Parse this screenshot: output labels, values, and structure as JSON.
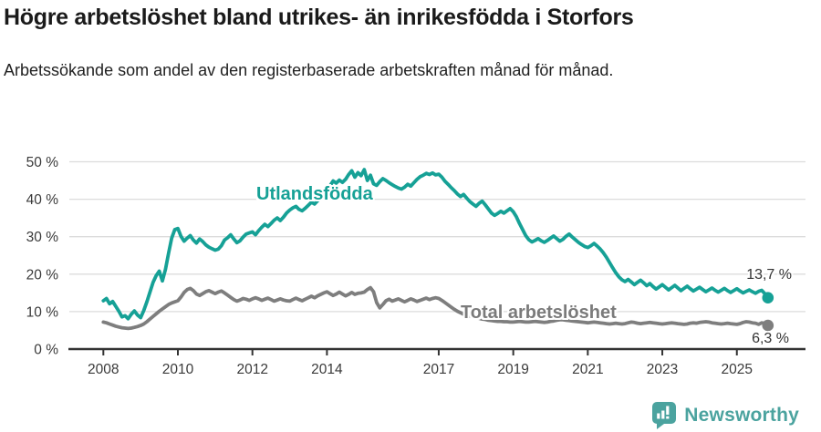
{
  "header": {
    "title": "Högre arbetslöshet bland utrikes- än inrikesfödda i Storfors",
    "subtitle": "Arbetssökande som andel av den registerbaserade arbetskraften månad för månad."
  },
  "chart_data": {
    "type": "line",
    "unit": "%",
    "x_start_year": 2008,
    "x_step_months": 1,
    "x_end_label_period": "late 2025",
    "xlim": [
      2007.05,
      2026.9
    ],
    "ylim": [
      0,
      52
    ],
    "grid": true,
    "legend_position": "inline-labels",
    "y_ticks": [
      {
        "value": 0,
        "label": "0 %"
      },
      {
        "value": 10,
        "label": "10 %"
      },
      {
        "value": 20,
        "label": "20 %"
      },
      {
        "value": 30,
        "label": "30 %"
      },
      {
        "value": 40,
        "label": "40 %"
      },
      {
        "value": 50,
        "label": "50 %"
      }
    ],
    "x_ticks": [
      {
        "value": 2008,
        "label": "2008"
      },
      {
        "value": 2010,
        "label": "2010"
      },
      {
        "value": 2012,
        "label": "2012"
      },
      {
        "value": 2014,
        "label": "2014"
      },
      {
        "value": 2017,
        "label": "2017"
      },
      {
        "value": 2019,
        "label": "2019"
      },
      {
        "value": 2021,
        "label": "2021"
      },
      {
        "value": 2023,
        "label": "2023"
      },
      {
        "value": 2025,
        "label": "2025"
      }
    ],
    "series": [
      {
        "name": "Utlandsfödda",
        "color": "#16A196",
        "end_value": 13.7,
        "end_label": "13,7 %",
        "values": [
          12.9,
          13.5,
          12.1,
          12.7,
          11.4,
          10.1,
          8.6,
          8.9,
          8.1,
          9.3,
          10.2,
          9.1,
          8.4,
          10.3,
          12.6,
          15.2,
          17.8,
          19.6,
          20.8,
          18.2,
          21.3,
          25.6,
          29.6,
          31.9,
          32.2,
          30.1,
          28.8,
          29.6,
          30.3,
          29.1,
          28.3,
          29.4,
          28.7,
          27.8,
          27.2,
          26.8,
          26.4,
          26.7,
          27.6,
          29.1,
          29.7,
          30.5,
          29.4,
          28.4,
          28.9,
          29.9,
          30.7,
          31.0,
          31.3,
          30.5,
          31.6,
          32.5,
          33.3,
          32.7,
          33.5,
          34.4,
          35.0,
          34.3,
          35.2,
          36.3,
          37.1,
          37.7,
          38.1,
          37.3,
          36.9,
          37.6,
          38.4,
          39.2,
          38.7,
          39.6,
          40.3,
          41.2,
          42.2,
          43.6,
          44.9,
          44.3,
          45.1,
          44.5,
          45.3,
          46.6,
          47.6,
          45.9,
          47.1,
          46.3,
          47.9,
          45.0,
          46.4,
          44.1,
          43.7,
          44.7,
          45.5,
          45.0,
          44.4,
          43.9,
          43.4,
          43.0,
          42.7,
          43.2,
          44.0,
          43.5,
          44.4,
          45.3,
          46.0,
          46.4,
          46.9,
          46.6,
          47.0,
          46.5,
          46.7,
          45.9,
          44.8,
          44.0,
          43.1,
          42.3,
          41.4,
          40.7,
          41.3,
          40.3,
          39.4,
          38.7,
          38.1,
          38.9,
          39.5,
          38.5,
          37.4,
          36.3,
          35.7,
          36.2,
          36.8,
          36.3,
          36.9,
          37.5,
          36.7,
          35.3,
          33.5,
          31.9,
          30.3,
          29.2,
          28.6,
          29.0,
          29.5,
          28.9,
          28.5,
          29.0,
          29.6,
          30.2,
          29.5,
          28.8,
          29.3,
          30.1,
          30.7,
          29.9,
          29.2,
          28.5,
          27.9,
          27.4,
          27.1,
          27.6,
          28.2,
          27.5,
          26.7,
          25.7,
          24.5,
          23.1,
          21.7,
          20.4,
          19.3,
          18.5,
          18.0,
          18.6,
          17.9,
          17.2,
          17.8,
          18.4,
          17.7,
          16.9,
          17.5,
          16.7,
          16.0,
          16.6,
          17.2,
          16.5,
          15.8,
          16.4,
          17.0,
          16.3,
          15.6,
          16.2,
          16.8,
          16.1,
          15.5,
          16.0,
          16.5,
          15.9,
          15.3,
          15.8,
          16.3,
          15.7,
          15.2,
          15.7,
          16.2,
          15.6,
          15.1,
          15.6,
          16.1,
          15.5,
          15.0,
          15.4,
          15.8,
          15.3,
          14.9,
          15.4,
          15.7,
          14.8,
          13.7
        ]
      },
      {
        "name": "Total arbetslöshet",
        "color": "#7E7E7E",
        "end_value": 6.3,
        "end_label": "6,3 %",
        "values": [
          7.2,
          7.0,
          6.7,
          6.4,
          6.1,
          5.9,
          5.7,
          5.6,
          5.5,
          5.6,
          5.8,
          6.0,
          6.3,
          6.7,
          7.3,
          8.0,
          8.7,
          9.4,
          10.1,
          10.7,
          11.3,
          11.9,
          12.3,
          12.6,
          12.9,
          13.9,
          15.1,
          15.9,
          16.2,
          15.6,
          14.7,
          14.3,
          14.8,
          15.3,
          15.6,
          15.2,
          14.8,
          15.2,
          15.5,
          15.0,
          14.4,
          13.8,
          13.2,
          12.8,
          13.1,
          13.5,
          13.3,
          13.0,
          13.4,
          13.7,
          13.4,
          13.0,
          13.3,
          13.6,
          13.2,
          12.8,
          13.1,
          13.4,
          13.1,
          12.9,
          12.8,
          13.2,
          13.6,
          13.2,
          12.9,
          13.3,
          13.7,
          14.1,
          13.7,
          14.2,
          14.6,
          15.0,
          15.3,
          14.8,
          14.3,
          14.7,
          15.2,
          14.7,
          14.2,
          14.6,
          15.1,
          14.6,
          14.9,
          15.0,
          15.2,
          15.9,
          16.4,
          15.3,
          12.4,
          11.0,
          11.9,
          12.9,
          13.3,
          12.8,
          13.1,
          13.4,
          13.0,
          12.6,
          13.0,
          13.4,
          13.1,
          12.7,
          13.0,
          13.3,
          13.6,
          13.2,
          13.5,
          13.7,
          13.5,
          13.0,
          12.4,
          11.8,
          11.2,
          10.6,
          10.1,
          9.7,
          9.3,
          9.0,
          8.8,
          8.6,
          8.4,
          8.2,
          8.0,
          7.9,
          7.7,
          7.6,
          7.5,
          7.4,
          7.4,
          7.3,
          7.3,
          7.2,
          7.2,
          7.3,
          7.4,
          7.3,
          7.2,
          7.2,
          7.3,
          7.4,
          7.3,
          7.2,
          7.1,
          7.2,
          7.4,
          7.5,
          7.7,
          7.8,
          7.8,
          7.7,
          7.6,
          7.5,
          7.4,
          7.3,
          7.2,
          7.1,
          7.0,
          7.1,
          7.2,
          7.1,
          7.0,
          6.9,
          6.8,
          6.7,
          6.8,
          6.9,
          6.8,
          6.7,
          6.8,
          7.0,
          7.2,
          7.1,
          6.9,
          6.8,
          6.9,
          7.0,
          7.1,
          7.0,
          6.9,
          6.8,
          6.7,
          6.8,
          6.9,
          7.0,
          6.9,
          6.8,
          6.7,
          6.6,
          6.7,
          6.9,
          7.0,
          6.9,
          7.1,
          7.2,
          7.3,
          7.2,
          7.0,
          6.9,
          6.8,
          6.7,
          6.8,
          6.9,
          6.8,
          6.7,
          6.6,
          6.8,
          7.1,
          7.3,
          7.2,
          7.0,
          6.9,
          6.6,
          7.0,
          6.9,
          6.3
        ]
      }
    ]
  },
  "footer": {
    "brand": "Newsworthy"
  },
  "colors": {
    "accent_teal": "#16A196",
    "series_gray": "#7E7E7E",
    "logo_teal": "#4BA39F",
    "grid": "#DCDCDC",
    "axis": "#333333",
    "title_text": "#1A1A1A"
  }
}
